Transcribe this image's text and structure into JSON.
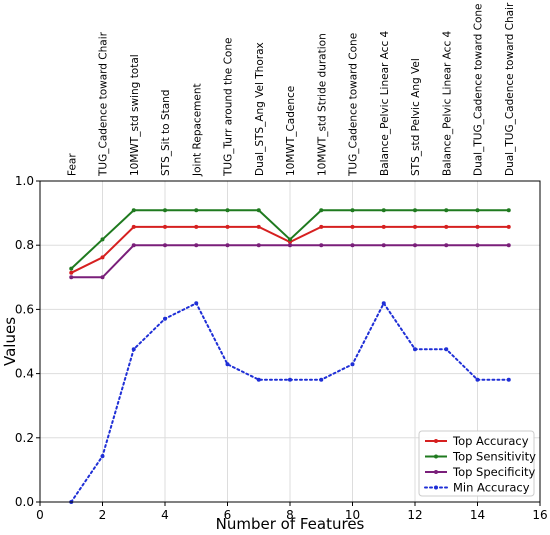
{
  "chart_data": {
    "type": "line",
    "xlabel": "Number of Features",
    "ylabel": "Values",
    "xlim": [
      0,
      16
    ],
    "ylim": [
      0.0,
      1.0
    ],
    "xticks": [
      0,
      2,
      4,
      6,
      8,
      10,
      12,
      14,
      16
    ],
    "yticks": [
      0.0,
      0.2,
      0.4,
      0.6,
      0.8,
      1.0
    ],
    "grid": true,
    "legend_position": "lower-right",
    "feature_labels": [
      "Fear",
      "TUG_Cadence toward Chair",
      "10MWT_std swing total",
      "STS_Sit to Stand",
      "Joint Repacement",
      "TUG_Turr around the Cone",
      "Dual_STS_Ang Vel Thorax",
      "10MWT_Cadence",
      "10MWT_std Stride duration",
      "TUG_Cadence toward Cone",
      "Balance_Pelvic Linear Acc 4",
      "STS_std Pelvic Ang Vel",
      "Balance_Pelvic Linear Acc 4",
      "Dual_TUG_Cadence toward Cone",
      "Dual_TUG_Cadence toward Chair"
    ],
    "x": [
      1,
      2,
      3,
      4,
      5,
      6,
      7,
      8,
      9,
      10,
      11,
      12,
      13,
      14,
      15
    ],
    "series": [
      {
        "name": "Top Accuracy",
        "color": "#d62020",
        "style": "solid",
        "values": [
          0.714,
          0.762,
          0.857,
          0.857,
          0.857,
          0.857,
          0.857,
          0.81,
          0.857,
          0.857,
          0.857,
          0.857,
          0.857,
          0.857,
          0.857
        ]
      },
      {
        "name": "Top Sensitivity",
        "color": "#1f7a1f",
        "style": "solid",
        "values": [
          0.727,
          0.818,
          0.909,
          0.909,
          0.909,
          0.909,
          0.909,
          0.818,
          0.909,
          0.909,
          0.909,
          0.909,
          0.909,
          0.909,
          0.909
        ]
      },
      {
        "name": "Top Specificity",
        "color": "#7a1f7a",
        "style": "solid",
        "values": [
          0.7,
          0.7,
          0.8,
          0.8,
          0.8,
          0.8,
          0.8,
          0.8,
          0.8,
          0.8,
          0.8,
          0.8,
          0.8,
          0.8,
          0.8
        ]
      },
      {
        "name": "Min Accuracy",
        "color": "#1f2fd6",
        "style": "dotted",
        "values": [
          0.0,
          0.143,
          0.476,
          0.571,
          0.619,
          0.429,
          0.381,
          0.381,
          0.381,
          0.429,
          0.619,
          0.476,
          0.476,
          0.381,
          0.381
        ]
      }
    ]
  }
}
